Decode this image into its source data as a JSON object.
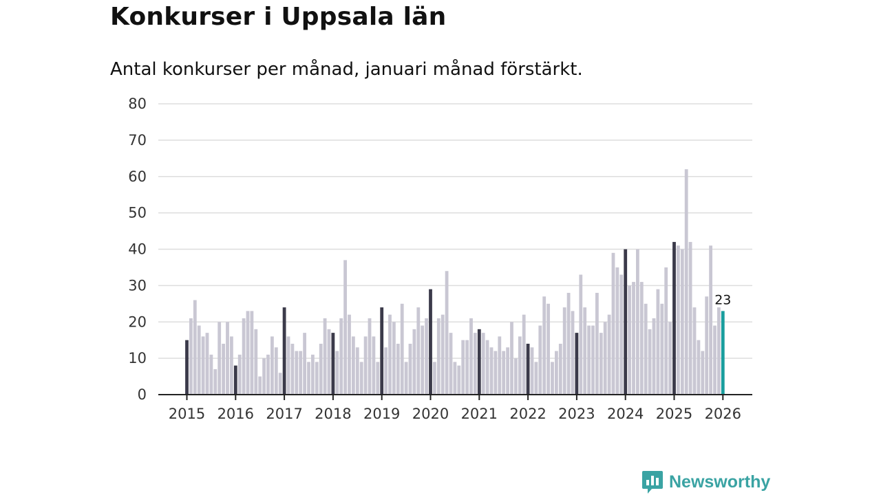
{
  "chart_data": {
    "type": "bar",
    "title": "Konkurser i Uppsala län",
    "subtitle": "Antal konkurser per månad, januari månad förstärkt.",
    "xlabel": "",
    "ylabel": "",
    "ylim": [
      0,
      80
    ],
    "yticks": [
      "0",
      "10",
      "20",
      "30",
      "40",
      "50",
      "60",
      "70",
      "80"
    ],
    "xtick_labels": [
      "2015",
      "2016",
      "2017",
      "2018",
      "2019",
      "2020",
      "2021",
      "2022",
      "2023",
      "2024",
      "2025",
      "2026"
    ],
    "start": "2015-01",
    "grid": true,
    "highlight": "january",
    "last_value_label": "23",
    "colors": {
      "regular": "#c9c7d3",
      "january": "#3b3a4a",
      "latest": "#1a9e9e",
      "grid": "#dddddd",
      "axis": "#222222"
    },
    "values": [
      15,
      21,
      26,
      19,
      16,
      17,
      11,
      7,
      20,
      14,
      20,
      16,
      8,
      11,
      21,
      23,
      23,
      18,
      5,
      10,
      11,
      16,
      13,
      6,
      24,
      16,
      14,
      12,
      12,
      17,
      9,
      11,
      9,
      14,
      21,
      18,
      17,
      12,
      21,
      37,
      22,
      16,
      13,
      9,
      16,
      21,
      16,
      9,
      24,
      13,
      22,
      20,
      14,
      25,
      9,
      14,
      18,
      24,
      19,
      21,
      29,
      9,
      21,
      22,
      34,
      17,
      9,
      8,
      15,
      15,
      21,
      17,
      18,
      17,
      15,
      13,
      12,
      16,
      12,
      13,
      20,
      10,
      16,
      22,
      14,
      13,
      9,
      19,
      27,
      25,
      9,
      12,
      14,
      24,
      28,
      23,
      17,
      33,
      24,
      19,
      19,
      28,
      17,
      20,
      22,
      39,
      35,
      33,
      40,
      30,
      31,
      40,
      31,
      25,
      18,
      21,
      29,
      25,
      35,
      20,
      42,
      41,
      40,
      62,
      42,
      24,
      15,
      12,
      27,
      41,
      19,
      24,
      23
    ]
  },
  "brand": {
    "name": "Newsworthy"
  }
}
